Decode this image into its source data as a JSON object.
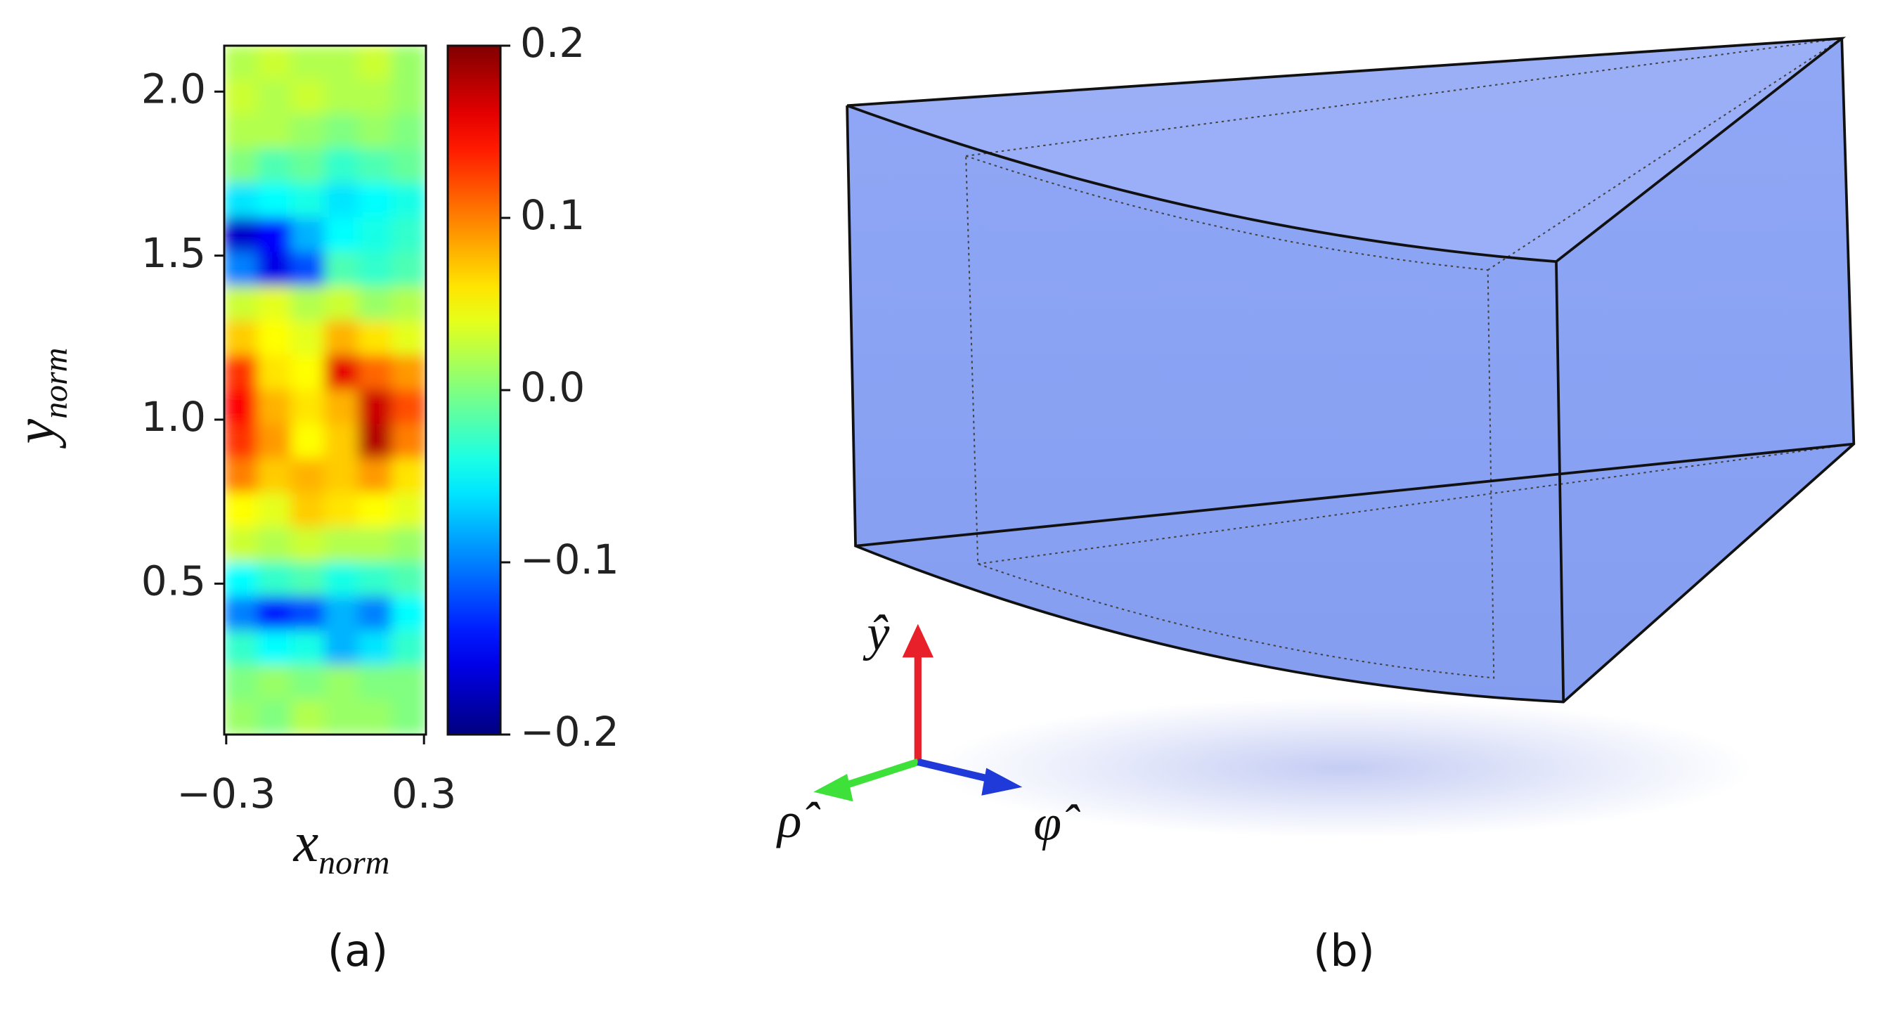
{
  "chart_data": {
    "type": "heatmap",
    "xlabel": {
      "main": "x",
      "sub": "norm"
    },
    "ylabel": {
      "main": "y",
      "sub": "norm"
    },
    "xlim": [
      -0.306,
      0.306
    ],
    "ylim": [
      0.04,
      2.14
    ],
    "xticks": [
      {
        "value": -0.3,
        "label": "−0.3"
      },
      0.3
    ],
    "yticks": [
      0.5,
      {
        "value": 1,
        "label": "1.0"
      },
      1.5,
      {
        "value": 2,
        "label": "2.0"
      }
    ],
    "colormap": "jet",
    "clim": [
      -0.2,
      0.2
    ],
    "cticks": [
      {
        "value": -0.2,
        "label": "−0.2"
      },
      {
        "value": -0.1,
        "label": "−0.1"
      },
      {
        "value": 0,
        "label": "0.0"
      },
      0.1,
      0.2
    ],
    "x": [
      -0.255,
      -0.153,
      -0.051,
      0.051,
      0.153,
      0.255
    ],
    "y": [
      2.0875,
      1.9825,
      1.8775,
      1.7725,
      1.6675,
      1.5625,
      1.4575,
      1.3525,
      1.2475,
      1.1425,
      1.0375,
      0.9325,
      0.8275,
      0.7225,
      0.6175,
      0.5125,
      0.4075,
      0.3025,
      0.1975,
      0.0925
    ],
    "z": [
      [
        0.02,
        0.03,
        0.02,
        0.02,
        0.03,
        0.01
      ],
      [
        0.03,
        0.02,
        0.03,
        0.02,
        0.02,
        0.01
      ],
      [
        0.02,
        0.02,
        0.01,
        0.0,
        0.01,
        0.0
      ],
      [
        0.0,
        -0.02,
        -0.01,
        -0.03,
        -0.02,
        -0.01
      ],
      [
        -0.06,
        -0.05,
        -0.04,
        -0.06,
        -0.05,
        -0.04
      ],
      [
        -0.17,
        -0.15,
        -0.08,
        -0.05,
        -0.04,
        -0.03
      ],
      [
        -0.1,
        -0.16,
        -0.12,
        -0.02,
        -0.03,
        -0.02
      ],
      [
        0.03,
        0.04,
        0.02,
        0.03,
        0.01,
        0.02
      ],
      [
        0.07,
        0.05,
        0.04,
        0.08,
        0.06,
        0.04
      ],
      [
        0.13,
        0.06,
        0.05,
        0.16,
        0.11,
        0.09
      ],
      [
        0.15,
        0.08,
        0.06,
        0.08,
        0.17,
        0.12
      ],
      [
        0.13,
        0.09,
        0.05,
        0.07,
        0.18,
        0.1
      ],
      [
        0.1,
        0.07,
        0.08,
        0.07,
        0.09,
        0.06
      ],
      [
        0.05,
        0.04,
        0.07,
        0.06,
        0.05,
        0.04
      ],
      [
        0.03,
        0.02,
        0.03,
        0.02,
        0.02,
        0.01
      ],
      [
        -0.05,
        -0.03,
        -0.02,
        -0.04,
        -0.03,
        -0.02
      ],
      [
        -0.1,
        -0.14,
        -0.12,
        -0.08,
        -0.1,
        -0.05
      ],
      [
        -0.03,
        -0.05,
        -0.04,
        -0.08,
        -0.06,
        -0.03
      ],
      [
        0.0,
        0.01,
        0.0,
        0.01,
        0.0,
        0.0
      ],
      [
        0.01,
        0.0,
        0.02,
        0.01,
        0.01,
        0.0
      ]
    ]
  },
  "diagram": {
    "y_axis": "ŷ",
    "rho_axis": "ρ̂",
    "phi_axis": "φ̂"
  },
  "panel_labels": [
    "(a)",
    "(b)"
  ]
}
